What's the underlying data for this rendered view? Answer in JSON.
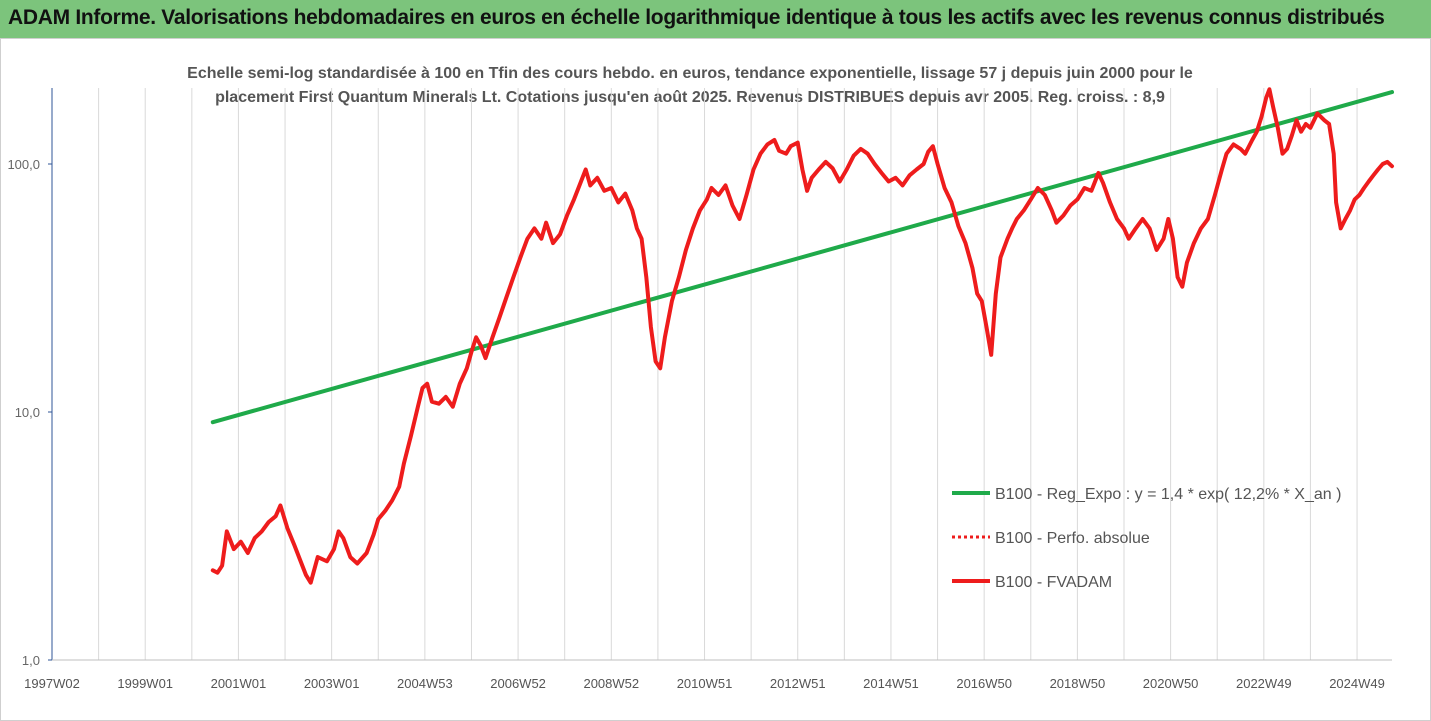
{
  "header": {
    "title": "ADAM Informe. Valorisations hebdomadaires en euros en échelle logarithmique identique à tous les actifs avec les revenus connus distribués"
  },
  "colors": {
    "header_bg": "#7cc47c",
    "trend": "#1faa4a",
    "fvadam": "#ee1c1c",
    "perf": "#ee1c1c",
    "grid": "#d9d9d9",
    "accent": "#f2c200"
  },
  "chart_data": {
    "type": "line",
    "subtitle_line1": "Echelle semi-log standardisée à 100 en Tfin des cours hebdo. en euros, tendance exponentielle, lissage 57 j depuis juin 2000 pour le",
    "subtitle_line2": "placement First Quantum Minerals Lt. Cotations jusqu'en août 2025.  Revenus DISTRIBUES depuis avr 2005. Reg. croiss. : 8,9",
    "y_scale": "log",
    "ylim": [
      1,
      200
    ],
    "xlim": [
      1997.0,
      2025.75
    ],
    "grid": "vertical",
    "legend_position": "right",
    "y_ticks": [
      {
        "value": 1,
        "label": "1,0"
      },
      {
        "value": 10,
        "label": "10,0"
      },
      {
        "value": 100,
        "label": "100,0"
      }
    ],
    "x_ticks": [
      {
        "value": 1997.0,
        "label": "1997W02"
      },
      {
        "value": 1999.0,
        "label": "1999W01"
      },
      {
        "value": 2001.0,
        "label": "2001W01"
      },
      {
        "value": 2003.0,
        "label": "2003W01"
      },
      {
        "value": 2005.0,
        "label": "2004W53"
      },
      {
        "value": 2007.0,
        "label": "2006W52"
      },
      {
        "value": 2009.0,
        "label": "2008W52"
      },
      {
        "value": 2011.0,
        "label": "2010W51"
      },
      {
        "value": 2013.0,
        "label": "2012W51"
      },
      {
        "value": 2015.0,
        "label": "2014W51"
      },
      {
        "value": 2017.0,
        "label": "2016W50"
      },
      {
        "value": 2019.0,
        "label": "2018W50"
      },
      {
        "value": 2021.0,
        "label": "2020W50"
      },
      {
        "value": 2023.0,
        "label": "2022W49"
      },
      {
        "value": 2025.0,
        "label": "2024W49"
      }
    ],
    "series": [
      {
        "name": "B100 - Reg_Expo : y = 1,4 * exp( 12,2% *  X_an )",
        "style": "solid",
        "color": "#1faa4a",
        "points": [
          [
            2000.45,
            9.1
          ],
          [
            2025.75,
            195
          ]
        ]
      },
      {
        "name": "B100 - Perfo. absolue",
        "style": "dotted",
        "color": "#ee1c1c",
        "points": []
      },
      {
        "name": "B100 - FVADAM",
        "style": "solid",
        "color": "#ee1c1c",
        "points": [
          [
            2000.45,
            2.3
          ],
          [
            2000.55,
            2.25
          ],
          [
            2000.65,
            2.4
          ],
          [
            2000.75,
            3.3
          ],
          [
            2000.9,
            2.8
          ],
          [
            2001.05,
            3.0
          ],
          [
            2001.2,
            2.7
          ],
          [
            2001.35,
            3.1
          ],
          [
            2001.5,
            3.3
          ],
          [
            2001.65,
            3.6
          ],
          [
            2001.8,
            3.8
          ],
          [
            2001.9,
            4.2
          ],
          [
            2002.05,
            3.4
          ],
          [
            2002.2,
            2.9
          ],
          [
            2002.3,
            2.6
          ],
          [
            2002.45,
            2.2
          ],
          [
            2002.55,
            2.05
          ],
          [
            2002.7,
            2.6
          ],
          [
            2002.9,
            2.5
          ],
          [
            2003.05,
            2.8
          ],
          [
            2003.15,
            3.3
          ],
          [
            2003.25,
            3.1
          ],
          [
            2003.4,
            2.6
          ],
          [
            2003.55,
            2.45
          ],
          [
            2003.75,
            2.7
          ],
          [
            2003.9,
            3.2
          ],
          [
            2004.0,
            3.7
          ],
          [
            2004.15,
            4.0
          ],
          [
            2004.3,
            4.4
          ],
          [
            2004.45,
            5.0
          ],
          [
            2004.55,
            6.2
          ],
          [
            2004.7,
            8.0
          ],
          [
            2004.85,
            10.5
          ],
          [
            2004.95,
            12.5
          ],
          [
            2005.05,
            13.0
          ],
          [
            2005.15,
            11.0
          ],
          [
            2005.3,
            10.8
          ],
          [
            2005.45,
            11.5
          ],
          [
            2005.6,
            10.5
          ],
          [
            2005.75,
            13.0
          ],
          [
            2005.9,
            15.0
          ],
          [
            2006.0,
            17.5
          ],
          [
            2006.1,
            20.0
          ],
          [
            2006.2,
            18.5
          ],
          [
            2006.3,
            16.5
          ],
          [
            2006.45,
            20.0
          ],
          [
            2006.6,
            24.0
          ],
          [
            2006.75,
            29.0
          ],
          [
            2006.9,
            35.0
          ],
          [
            2007.05,
            42.0
          ],
          [
            2007.2,
            50.0
          ],
          [
            2007.35,
            55.0
          ],
          [
            2007.5,
            50.0
          ],
          [
            2007.6,
            58.0
          ],
          [
            2007.75,
            48.0
          ],
          [
            2007.9,
            52.0
          ],
          [
            2008.05,
            62.0
          ],
          [
            2008.2,
            72.0
          ],
          [
            2008.35,
            85.0
          ],
          [
            2008.45,
            95.0
          ],
          [
            2008.55,
            82.0
          ],
          [
            2008.7,
            88.0
          ],
          [
            2008.85,
            78.0
          ],
          [
            2009.0,
            80.0
          ],
          [
            2009.15,
            70.0
          ],
          [
            2009.3,
            76.0
          ],
          [
            2009.45,
            65.0
          ],
          [
            2009.55,
            55.0
          ],
          [
            2009.65,
            50.0
          ],
          [
            2009.75,
            35.0
          ],
          [
            2009.85,
            22.0
          ],
          [
            2009.95,
            16.0
          ],
          [
            2010.05,
            15.0
          ],
          [
            2010.15,
            20.0
          ],
          [
            2010.3,
            28.0
          ],
          [
            2010.45,
            35.0
          ],
          [
            2010.6,
            45.0
          ],
          [
            2010.75,
            55.0
          ],
          [
            2010.9,
            65.0
          ],
          [
            2011.05,
            72.0
          ],
          [
            2011.15,
            80.0
          ],
          [
            2011.3,
            75.0
          ],
          [
            2011.45,
            82.0
          ],
          [
            2011.6,
            68.0
          ],
          [
            2011.75,
            60.0
          ],
          [
            2011.9,
            75.0
          ],
          [
            2012.05,
            95.0
          ],
          [
            2012.2,
            110.0
          ],
          [
            2012.35,
            120.0
          ],
          [
            2012.5,
            125.0
          ],
          [
            2012.6,
            113.0
          ],
          [
            2012.75,
            110.0
          ],
          [
            2012.85,
            118.0
          ],
          [
            2013.0,
            122.0
          ],
          [
            2013.1,
            95.0
          ],
          [
            2013.2,
            78.0
          ],
          [
            2013.3,
            88.0
          ],
          [
            2013.45,
            95.0
          ],
          [
            2013.6,
            102.0
          ],
          [
            2013.75,
            96.0
          ],
          [
            2013.9,
            85.0
          ],
          [
            2014.05,
            95.0
          ],
          [
            2014.2,
            108.0
          ],
          [
            2014.35,
            115.0
          ],
          [
            2014.5,
            110.0
          ],
          [
            2014.65,
            100.0
          ],
          [
            2014.8,
            92.0
          ],
          [
            2014.95,
            85.0
          ],
          [
            2015.1,
            88.0
          ],
          [
            2015.25,
            82.0
          ],
          [
            2015.4,
            90.0
          ],
          [
            2015.55,
            95.0
          ],
          [
            2015.7,
            100.0
          ],
          [
            2015.8,
            112.0
          ],
          [
            2015.9,
            118.0
          ],
          [
            2016.0,
            100.0
          ],
          [
            2016.15,
            80.0
          ],
          [
            2016.3,
            70.0
          ],
          [
            2016.45,
            56.0
          ],
          [
            2016.6,
            48.0
          ],
          [
            2016.75,
            38.0
          ],
          [
            2016.85,
            30.0
          ],
          [
            2016.95,
            28.0
          ],
          [
            2017.05,
            22.0
          ],
          [
            2017.15,
            17.0
          ],
          [
            2017.25,
            30.0
          ],
          [
            2017.35,
            42.0
          ],
          [
            2017.5,
            50.0
          ],
          [
            2017.6,
            55.0
          ],
          [
            2017.7,
            60.0
          ],
          [
            2017.85,
            65.0
          ],
          [
            2018.0,
            72.0
          ],
          [
            2018.15,
            80.0
          ],
          [
            2018.3,
            75.0
          ],
          [
            2018.45,
            65.0
          ],
          [
            2018.55,
            58.0
          ],
          [
            2018.7,
            62.0
          ],
          [
            2018.85,
            68.0
          ],
          [
            2019.0,
            72.0
          ],
          [
            2019.15,
            80.0
          ],
          [
            2019.3,
            78.0
          ],
          [
            2019.45,
            92.0
          ],
          [
            2019.55,
            84.0
          ],
          [
            2019.7,
            70.0
          ],
          [
            2019.85,
            60.0
          ],
          [
            2020.0,
            55.0
          ],
          [
            2020.1,
            50.0
          ],
          [
            2020.25,
            55.0
          ],
          [
            2020.4,
            60.0
          ],
          [
            2020.55,
            55.0
          ],
          [
            2020.7,
            45.0
          ],
          [
            2020.85,
            50.0
          ],
          [
            2020.95,
            60.0
          ],
          [
            2021.05,
            50.0
          ],
          [
            2021.15,
            35.0
          ],
          [
            2021.25,
            32.0
          ],
          [
            2021.35,
            40.0
          ],
          [
            2021.5,
            48.0
          ],
          [
            2021.65,
            55.0
          ],
          [
            2021.8,
            60.0
          ],
          [
            2021.95,
            75.0
          ],
          [
            2022.1,
            95.0
          ],
          [
            2022.2,
            110.0
          ],
          [
            2022.35,
            120.0
          ],
          [
            2022.5,
            115.0
          ],
          [
            2022.6,
            110.0
          ],
          [
            2022.75,
            125.0
          ],
          [
            2022.85,
            135.0
          ],
          [
            2022.95,
            155.0
          ],
          [
            2023.05,
            185.0
          ],
          [
            2023.12,
            200.0
          ],
          [
            2023.2,
            170.0
          ],
          [
            2023.3,
            140.0
          ],
          [
            2023.4,
            110.0
          ],
          [
            2023.5,
            115.0
          ],
          [
            2023.6,
            130.0
          ],
          [
            2023.7,
            150.0
          ],
          [
            2023.8,
            135.0
          ],
          [
            2023.9,
            145.0
          ],
          [
            2024.0,
            140.0
          ],
          [
            2024.15,
            160.0
          ],
          [
            2024.3,
            150.0
          ],
          [
            2024.4,
            145.0
          ],
          [
            2024.5,
            110.0
          ],
          [
            2024.55,
            70.0
          ],
          [
            2024.65,
            55.0
          ],
          [
            2024.75,
            60.0
          ],
          [
            2024.85,
            65.0
          ],
          [
            2024.95,
            72.0
          ],
          [
            2025.05,
            75.0
          ],
          [
            2025.15,
            80.0
          ],
          [
            2025.25,
            85.0
          ],
          [
            2025.35,
            90.0
          ],
          [
            2025.45,
            95.0
          ],
          [
            2025.55,
            100.0
          ],
          [
            2025.65,
            102.0
          ],
          [
            2025.75,
            98.0
          ]
        ]
      }
    ]
  }
}
